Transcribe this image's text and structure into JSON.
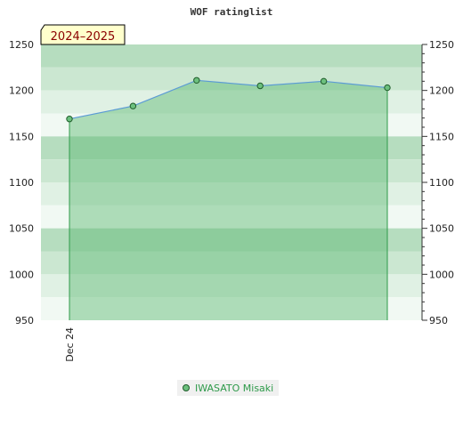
{
  "chart_data": {
    "type": "area",
    "title": "WOF ratinglist",
    "season_label": "2024–2025",
    "ylim": [
      950,
      1250
    ],
    "yticks": [
      950,
      1000,
      1050,
      1100,
      1150,
      1200,
      1250
    ],
    "x_labels": [
      "Dec 24"
    ],
    "series": [
      {
        "name": "IWASATO Misaki",
        "values": [
          1169,
          1183,
          1211,
          1205,
          1210,
          1203
        ]
      }
    ],
    "grid": true,
    "legend_position": "bottom"
  },
  "colors": {
    "band_dark": "#b6ddbf",
    "band_mid": "#cbe7d1",
    "band_light": "#e0f1e4",
    "band_lightest": "#f1f9f3",
    "area_fill": "#5cb872",
    "line": "#5b9bd5",
    "marker": "#6cc07e",
    "marker_stroke": "#1f5c2a",
    "label_bg": "#ffffcc"
  }
}
